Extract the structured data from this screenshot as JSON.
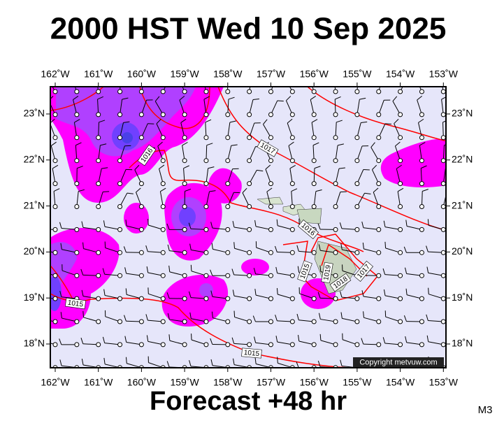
{
  "header": {
    "title": "2000 HST Wed 10 Sep 2025"
  },
  "map": {
    "lon_labels": [
      "162˚W",
      "161˚W",
      "160˚W",
      "159˚W",
      "158˚W",
      "157˚W",
      "156˚W",
      "155˚W",
      "154˚W",
      "153˚W"
    ],
    "lat_labels": [
      "23˚N",
      "22˚N",
      "21˚N",
      "20˚N",
      "19˚N",
      "18˚N"
    ],
    "isobar_labels": [
      1016,
      1017,
      1016,
      1015,
      1019,
      1018,
      1017,
      1015,
      1015
    ],
    "copyright": "Copyright metvuw.com"
  },
  "footer": {
    "caption": "Forecast +48 hr",
    "model": "M3"
  }
}
